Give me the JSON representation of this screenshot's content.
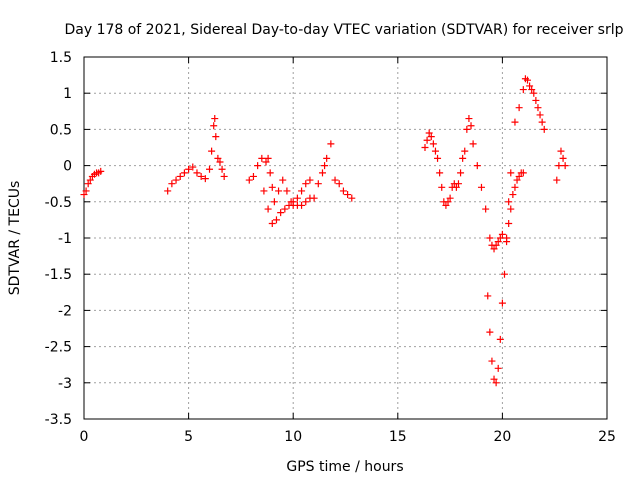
{
  "chart_data": {
    "type": "scatter",
    "title": "Day 178 of 2021, Sidereal Day-to-day VTEC variation (SDTVAR) for receiver srlp",
    "xlabel": "GPS time / hours",
    "ylabel": "SDTVAR / TECUs",
    "xlim": [
      0,
      25
    ],
    "ylim": [
      -3.5,
      1.5
    ],
    "xticks": [
      0,
      5,
      10,
      15,
      20,
      25
    ],
    "xtick_labels": [
      "0",
      "5",
      "10",
      "15",
      "20",
      "25"
    ],
    "yticks": [
      -3.5,
      -3,
      -2.5,
      -2,
      -1.5,
      -1,
      -0.5,
      0,
      0.5,
      1,
      1.5
    ],
    "ytick_labels": [
      "-3.5",
      "-3",
      "-2.5",
      "-2",
      "-1.5",
      "-1",
      "-0.5",
      "0",
      "0.5",
      "1",
      "1.5"
    ],
    "grid": true,
    "marker": "+",
    "color": "#ff0000",
    "series": [
      {
        "name": "SDTVAR",
        "x": [
          0.0,
          0.1,
          0.2,
          0.3,
          0.4,
          0.5,
          0.6,
          0.7,
          0.8,
          4.0,
          4.2,
          4.4,
          4.6,
          4.8,
          5.0,
          5.2,
          5.4,
          5.6,
          5.8,
          6.0,
          6.1,
          6.2,
          6.25,
          6.3,
          6.4,
          6.5,
          6.6,
          6.7,
          7.9,
          8.1,
          8.3,
          8.5,
          8.7,
          8.8,
          8.9,
          9.0,
          9.1,
          9.3,
          9.5,
          9.7,
          9.9,
          10.0,
          10.2,
          10.4,
          10.6,
          10.8,
          8.6,
          8.8,
          9.0,
          9.2,
          9.4,
          9.6,
          9.8,
          10.0,
          10.2,
          10.4,
          10.6,
          10.8,
          11.0,
          11.2,
          11.4,
          11.5,
          11.6,
          11.8,
          12.0,
          12.2,
          12.4,
          12.6,
          12.8,
          16.3,
          16.4,
          16.5,
          16.6,
          16.7,
          16.8,
          16.9,
          17.0,
          17.1,
          17.2,
          17.3,
          17.4,
          17.5,
          17.6,
          17.7,
          17.8,
          17.9,
          18.0,
          18.1,
          18.2,
          18.3,
          18.4,
          18.5,
          18.6,
          18.8,
          19.0,
          19.2,
          19.4,
          19.5,
          19.6,
          19.7,
          19.8,
          19.9,
          20.0,
          19.3,
          19.4,
          19.5,
          19.6,
          19.7,
          19.8,
          19.9,
          20.0,
          20.1,
          20.2,
          20.3,
          20.4,
          20.2,
          20.3,
          20.4,
          20.5,
          20.6,
          20.7,
          20.8,
          20.9,
          21.0,
          20.6,
          20.8,
          21.0,
          21.1,
          21.2,
          21.3,
          21.4,
          21.5,
          21.6,
          21.7,
          21.8,
          21.9,
          22.0,
          22.6,
          22.7,
          22.8,
          22.9,
          23.0
        ],
        "y": [
          -0.4,
          -0.35,
          -0.25,
          -0.2,
          -0.15,
          -0.12,
          -0.1,
          -0.1,
          -0.08,
          -0.35,
          -0.25,
          -0.2,
          -0.15,
          -0.1,
          -0.05,
          -0.02,
          -0.1,
          -0.15,
          -0.18,
          -0.05,
          0.2,
          0.55,
          0.65,
          0.4,
          0.1,
          0.05,
          -0.05,
          -0.15,
          -0.2,
          -0.15,
          0.0,
          0.1,
          0.05,
          0.1,
          -0.1,
          -0.3,
          -0.5,
          -0.35,
          -0.2,
          -0.35,
          -0.5,
          -0.55,
          -0.45,
          -0.35,
          -0.25,
          -0.2,
          -0.35,
          -0.6,
          -0.8,
          -0.75,
          -0.65,
          -0.6,
          -0.55,
          -0.5,
          -0.55,
          -0.55,
          -0.5,
          -0.45,
          -0.45,
          -0.25,
          -0.1,
          0.0,
          0.1,
          0.3,
          -0.2,
          -0.25,
          -0.35,
          -0.4,
          -0.45,
          0.25,
          0.35,
          0.45,
          0.4,
          0.3,
          0.2,
          0.1,
          -0.1,
          -0.3,
          -0.5,
          -0.55,
          -0.5,
          -0.45,
          -0.3,
          -0.25,
          -0.3,
          -0.25,
          -0.1,
          0.1,
          0.2,
          0.5,
          0.65,
          0.55,
          0.3,
          0.0,
          -0.3,
          -0.6,
          -1.0,
          -1.1,
          -1.15,
          -1.1,
          -1.05,
          -1.0,
          -0.95,
          -1.8,
          -2.3,
          -2.7,
          -2.95,
          -3.0,
          -2.8,
          -2.4,
          -1.9,
          -1.5,
          -1.0,
          -0.5,
          -0.1,
          -1.05,
          -0.8,
          -0.6,
          -0.4,
          -0.3,
          -0.2,
          -0.15,
          -0.1,
          -0.1,
          0.6,
          0.8,
          1.05,
          1.2,
          1.18,
          1.1,
          1.05,
          1.0,
          0.9,
          0.8,
          0.7,
          0.6,
          0.5,
          -0.2,
          0.0,
          0.2,
          0.1,
          0.0
        ]
      }
    ]
  }
}
